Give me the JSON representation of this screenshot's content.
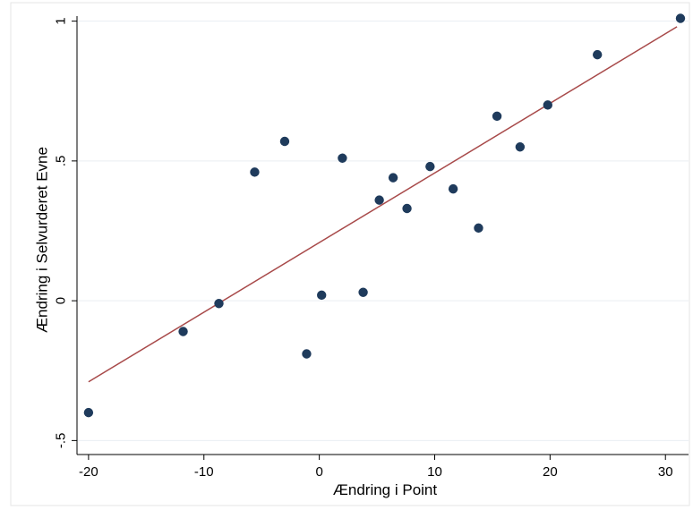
{
  "chart_data": {
    "type": "scatter",
    "title": "",
    "xlabel": "Ændring i Point",
    "ylabel": "Ændring i Selvurderet Evne",
    "xlim": [
      -21.0,
      32.0
    ],
    "ylim": [
      -0.55,
      1.05
    ],
    "x_ticks": [
      -20,
      -10,
      0,
      10,
      20,
      30
    ],
    "x_tick_labels": [
      "-20",
      "-10",
      "0",
      "10",
      "20",
      "30"
    ],
    "y_ticks": [
      -0.5,
      0,
      0.5,
      1
    ],
    "y_tick_labels": [
      "-.5",
      "0",
      ".5",
      "1"
    ],
    "grid": "horizontal",
    "series": [
      {
        "kind": "points",
        "color": "#1f3b5c",
        "points": [
          {
            "x": -20.0,
            "y": -0.4
          },
          {
            "x": -11.8,
            "y": -0.11
          },
          {
            "x": -8.7,
            "y": -0.01
          },
          {
            "x": -5.6,
            "y": 0.46
          },
          {
            "x": -3.0,
            "y": 0.57
          },
          {
            "x": -1.1,
            "y": -0.19
          },
          {
            "x": 0.2,
            "y": 0.02
          },
          {
            "x": 2.0,
            "y": 0.51
          },
          {
            "x": 3.8,
            "y": 0.03
          },
          {
            "x": 5.2,
            "y": 0.36
          },
          {
            "x": 6.4,
            "y": 0.44
          },
          {
            "x": 7.6,
            "y": 0.33
          },
          {
            "x": 9.6,
            "y": 0.48
          },
          {
            "x": 11.6,
            "y": 0.4
          },
          {
            "x": 13.8,
            "y": 0.26
          },
          {
            "x": 15.4,
            "y": 0.66
          },
          {
            "x": 17.4,
            "y": 0.55
          },
          {
            "x": 19.8,
            "y": 0.7
          },
          {
            "x": 24.1,
            "y": 0.88
          },
          {
            "x": 31.3,
            "y": 1.01
          }
        ]
      },
      {
        "kind": "fit-line",
        "color": "#a84a4a",
        "points": [
          {
            "x": -20.0,
            "y": -0.29
          },
          {
            "x": 31.0,
            "y": 0.98
          }
        ]
      }
    ]
  }
}
